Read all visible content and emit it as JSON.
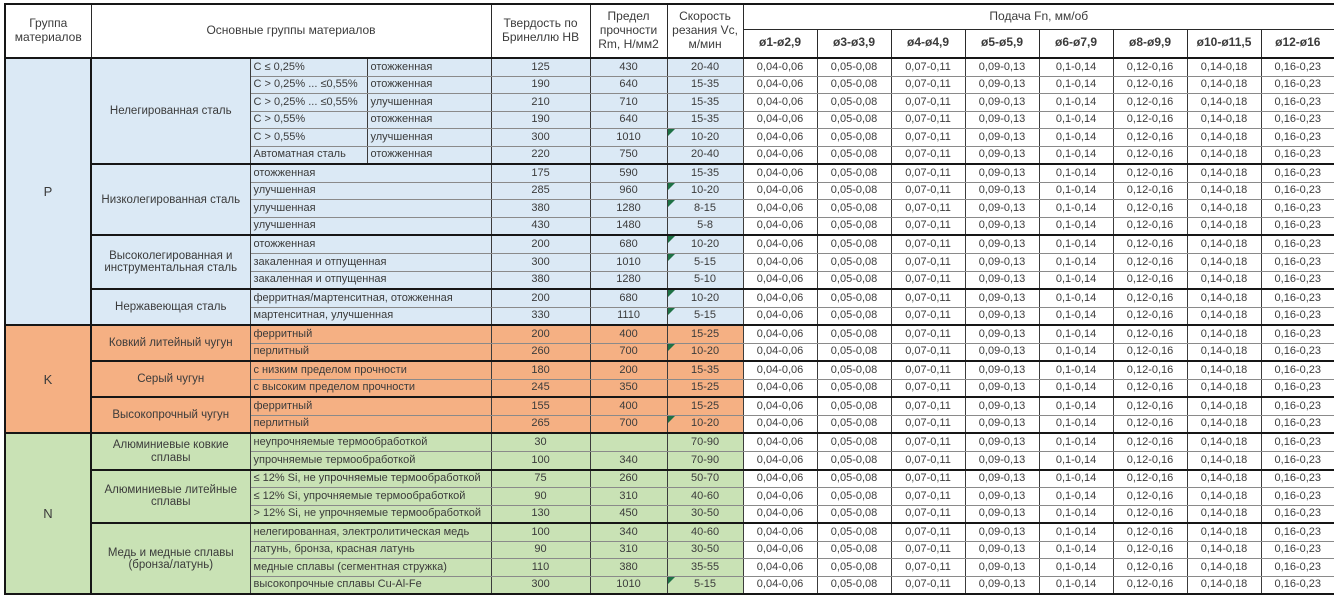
{
  "header": {
    "col_group": "Группа материалов",
    "col_main_groups": "Основные группы материалов",
    "col_hardness": "Твердость по Бринеллю HB",
    "col_strength": "Предел прочности Rm, Н/мм2",
    "col_speed": "Скорость резания Vc, м/мин",
    "col_feed": "Подача Fn, мм/об",
    "diameters": [
      "ø1-ø2,9",
      "ø3-ø3,9",
      "ø4-ø4,9",
      "ø5-ø5,9",
      "ø6-ø7,9",
      "ø8-ø9,9",
      "ø10-ø11,5",
      "ø12-ø16"
    ]
  },
  "feed_values": [
    "0,04-0,06",
    "0,05-0,08",
    "0,07-0,11",
    "0,09-0,13",
    "0,1-0,14",
    "0,12-0,16",
    "0,14-0,18",
    "0,16-0,23"
  ],
  "marker_color": "#1e7145",
  "groups": [
    {
      "code": "P",
      "fill": "#dbe9f5",
      "subgroups": [
        {
          "name": "Нелегированная сталь",
          "rows": [
            {
              "m1": "C ≤ 0,25%",
              "m2": "отожженная",
              "hb": "125",
              "rm": "430",
              "vc": "20-40",
              "marker": false
            },
            {
              "m1": "C > 0,25% ... ≤0,55%",
              "m2": "отожженная",
              "hb": "190",
              "rm": "640",
              "vc": "15-35",
              "marker": false
            },
            {
              "m1": "C > 0,25% ... ≤0,55%",
              "m2": "улучшенная",
              "hb": "210",
              "rm": "710",
              "vc": "15-35",
              "marker": false
            },
            {
              "m1": "C > 0,55%",
              "m2": "отожженная",
              "hb": "190",
              "rm": "640",
              "vc": "15-35",
              "marker": false
            },
            {
              "m1": "C > 0,55%",
              "m2": "улучшенная",
              "hb": "300",
              "rm": "1010",
              "vc": "10-20",
              "marker": true
            },
            {
              "m1": "Автоматная сталь",
              "m2": "отожженная",
              "hb": "220",
              "rm": "750",
              "vc": "20-40",
              "marker": false
            }
          ]
        },
        {
          "name": "Низколегированная сталь",
          "rows": [
            {
              "m1": "отожженная",
              "m2": null,
              "hb": "175",
              "rm": "590",
              "vc": "15-35",
              "marker": false
            },
            {
              "m1": "улучшенная",
              "m2": null,
              "hb": "285",
              "rm": "960",
              "vc": "10-20",
              "marker": true
            },
            {
              "m1": "улучшенная",
              "m2": null,
              "hb": "380",
              "rm": "1280",
              "vc": "8-15",
              "marker": true
            },
            {
              "m1": "улучшенная",
              "m2": null,
              "hb": "430",
              "rm": "1480",
              "vc": "5-8",
              "marker": false
            }
          ]
        },
        {
          "name": "Высоколегированная и инструментальная сталь",
          "rows": [
            {
              "m1": "отожженная",
              "m2": null,
              "hb": "200",
              "rm": "680",
              "vc": "10-20",
              "marker": true
            },
            {
              "m1": "закаленная и отпущенная",
              "m2": null,
              "hb": "300",
              "rm": "1010",
              "vc": "5-15",
              "marker": true
            },
            {
              "m1": "закаленная и отпущенная",
              "m2": null,
              "hb": "380",
              "rm": "1280",
              "vc": "5-10",
              "marker": false
            }
          ]
        },
        {
          "name": "Нержавеющая сталь",
          "rows": [
            {
              "m1": "ферритная/мартенситная, отожженная",
              "m2": null,
              "hb": "200",
              "rm": "680",
              "vc": "10-20",
              "marker": true
            },
            {
              "m1": "мартенситная, улучшенная",
              "m2": null,
              "hb": "330",
              "rm": "1110",
              "vc": "5-15",
              "marker": true
            }
          ]
        }
      ]
    },
    {
      "code": "K",
      "fill": "#f5b083",
      "subgroups": [
        {
          "name": "Ковкий литейный чугун",
          "rows": [
            {
              "m1": "ферритный",
              "m2": null,
              "hb": "200",
              "rm": "400",
              "vc": "15-25",
              "marker": false
            },
            {
              "m1": "перлитный",
              "m2": null,
              "hb": "260",
              "rm": "700",
              "vc": "10-20",
              "marker": true
            }
          ]
        },
        {
          "name": "Серый чугун",
          "rows": [
            {
              "m1": "с низким пределом прочности",
              "m2": null,
              "hb": "180",
              "rm": "200",
              "vc": "15-35",
              "marker": false
            },
            {
              "m1": "с высоким пределом прочности",
              "m2": null,
              "hb": "245",
              "rm": "350",
              "vc": "15-25",
              "marker": false
            }
          ]
        },
        {
          "name": "Высокопрочный чугун",
          "rows": [
            {
              "m1": "ферритный",
              "m2": null,
              "hb": "155",
              "rm": "400",
              "vc": "15-25",
              "marker": false
            },
            {
              "m1": "перлитный",
              "m2": null,
              "hb": "265",
              "rm": "700",
              "vc": "10-20",
              "marker": true
            }
          ]
        }
      ]
    },
    {
      "code": "N",
      "fill": "#c9e2b5",
      "subgroups": [
        {
          "name": "Алюминиевые ковкие сплавы",
          "rows": [
            {
              "m1": "неупрочняемые термообработкой",
              "m2": null,
              "hb": "30",
              "rm": "",
              "vc": "70-90",
              "marker": false
            },
            {
              "m1": "упрочняемые термообработкой",
              "m2": null,
              "hb": "100",
              "rm": "340",
              "vc": "70-90",
              "marker": false
            }
          ]
        },
        {
          "name": "Алюминиевые литейные сплавы",
          "rows": [
            {
              "m1": "≤ 12% Si, не упрочняемые термообработкой",
              "m2": null,
              "hb": "75",
              "rm": "260",
              "vc": "50-70",
              "marker": false
            },
            {
              "m1": "≤ 12% Si, упрочняемые термообработкой",
              "m2": null,
              "hb": "90",
              "rm": "310",
              "vc": "40-60",
              "marker": false
            },
            {
              "m1": "> 12% Si, не упрочняемые термообработкой",
              "m2": null,
              "hb": "130",
              "rm": "450",
              "vc": "30-50",
              "marker": false
            }
          ]
        },
        {
          "name": "Медь и медные сплавы (бронза/латунь)",
          "rows": [
            {
              "m1": "нелегированная, электролитическая медь",
              "m2": null,
              "hb": "100",
              "rm": "340",
              "vc": "40-60",
              "marker": false
            },
            {
              "m1": "латунь, бронза, красная латунь",
              "m2": null,
              "hb": "90",
              "rm": "310",
              "vc": "30-50",
              "marker": false
            },
            {
              "m1": "медные сплавы (сегментная стружка)",
              "m2": null,
              "hb": "110",
              "rm": "380",
              "vc": "35-55",
              "marker": false
            },
            {
              "m1": "высокопрочные сплавы Cu-Al-Fe",
              "m2": null,
              "hb": "300",
              "rm": "1010",
              "vc": "5-15",
              "marker": true
            }
          ]
        }
      ]
    }
  ]
}
